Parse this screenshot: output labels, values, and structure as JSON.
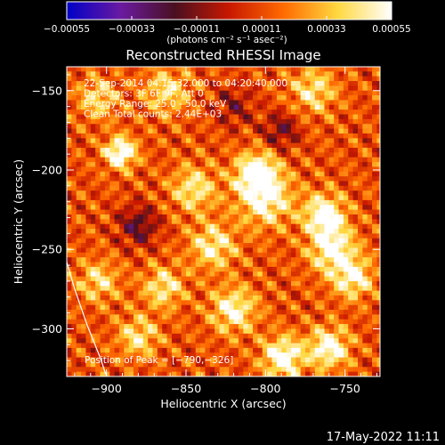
{
  "chart_data": {
    "type": "heatmap",
    "title": "Reconstructed RHESSI Image",
    "xlabel": "Heliocentric X (arcsec)",
    "ylabel": "Heliocentric Y (arcsec)",
    "xlim": [
      -925,
      -728
    ],
    "ylim": [
      -330,
      -135
    ],
    "x_ticks": [
      -900,
      -850,
      -800,
      -750
    ],
    "x_tick_labels": [
      "−900",
      "−850",
      "−800",
      "−750"
    ],
    "y_ticks": [
      -150,
      -200,
      -250,
      -300
    ],
    "y_tick_labels": [
      "−150",
      "−200",
      "−250",
      "−300"
    ],
    "colorbar": {
      "range": [
        -0.00055,
        0.00055
      ],
      "ticks": [
        -0.00055,
        -0.00033,
        -0.00011,
        0.00011,
        0.00033,
        0.00055
      ],
      "tick_labels": [
        "−0.00055",
        "−0.00033",
        "−0.00011",
        "0.00011",
        "0.00033",
        "0.00055"
      ],
      "unit_label": "(photons cm⁻² s⁻¹ asec⁻²)",
      "stops": [
        "#0000c8",
        "#6a1aa0",
        "#4a1020",
        "#c81800",
        "#ff6a00",
        "#ffd840",
        "#ffffff"
      ]
    },
    "annotations": [
      "22-Sep-2014 04:15:32.000 to 04:20:40.000",
      "Detectors: 3F 6F 9F, Att 0",
      "Energy Range: 25.0 - 50.0 keV",
      "Clean     Total counts: 2.44E+03"
    ],
    "peak_label": "Position of Peak = [−790,−326]",
    "peak_position": [
      -790,
      -326
    ],
    "limb_curve": [
      [
        -925,
        -258
      ],
      [
        -920,
        -275
      ],
      [
        -912,
        -298
      ],
      [
        -904,
        -318
      ],
      [
        -900,
        -330
      ]
    ],
    "blobs": [
      {
        "x": -891,
        "y": -189,
        "amp": 0.00052,
        "w": 7
      },
      {
        "x": -806,
        "y": -202,
        "amp": 0.0005,
        "w": 9
      },
      {
        "x": -800,
        "y": -218,
        "amp": 0.00042,
        "w": 12
      },
      {
        "x": -763,
        "y": -228,
        "amp": 0.00048,
        "w": 9
      },
      {
        "x": -758,
        "y": -250,
        "amp": 0.00046,
        "w": 10
      },
      {
        "x": -745,
        "y": -268,
        "amp": 0.0004,
        "w": 9
      },
      {
        "x": -845,
        "y": -212,
        "amp": 0.00034,
        "w": 10
      },
      {
        "x": -833,
        "y": -248,
        "amp": 0.00036,
        "w": 10
      },
      {
        "x": -864,
        "y": -274,
        "amp": 0.00034,
        "w": 9
      },
      {
        "x": -820,
        "y": -288,
        "amp": 0.0004,
        "w": 10
      },
      {
        "x": -789,
        "y": -318,
        "amp": 0.0005,
        "w": 9
      },
      {
        "x": -760,
        "y": -312,
        "amp": 0.00046,
        "w": 9
      },
      {
        "x": -905,
        "y": -270,
        "amp": 0.0003,
        "w": 9
      },
      {
        "x": -880,
        "y": -305,
        "amp": 0.00032,
        "w": 9
      },
      {
        "x": -862,
        "y": -150,
        "amp": 0.0003,
        "w": 10
      },
      {
        "x": -905,
        "y": -155,
        "amp": 0.00028,
        "w": 9
      },
      {
        "x": -770,
        "y": -150,
        "amp": 0.00032,
        "w": 10
      },
      {
        "x": -880,
        "y": -235,
        "amp": -0.0003,
        "w": 9
      },
      {
        "x": -790,
        "y": -175,
        "amp": -0.00026,
        "w": 8
      },
      {
        "x": -820,
        "y": -160,
        "amp": -0.0002,
        "w": 9
      }
    ]
  },
  "footer": {
    "timestamp": "17-May-2022 11:11"
  }
}
